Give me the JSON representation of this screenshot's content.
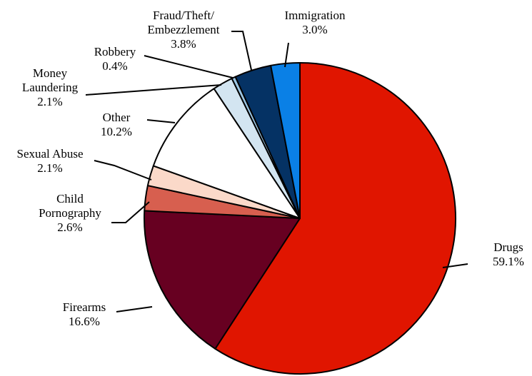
{
  "chart_data": {
    "type": "pie",
    "title": "",
    "start_angle_deg": 0,
    "direction": "clockwise",
    "slices": [
      {
        "label": [
          "Drugs"
        ],
        "value_label": "59.1%",
        "value": 59.1,
        "color": "#e01500"
      },
      {
        "label": [
          "Firearms"
        ],
        "value_label": "16.6%",
        "value": 16.6,
        "color": "#670021"
      },
      {
        "label": [
          "Child",
          "Pornography"
        ],
        "value_label": "2.6%",
        "value": 2.6,
        "color": "#d75f4f"
      },
      {
        "label": [
          "Sexual Abuse"
        ],
        "value_label": "2.1%",
        "value": 2.1,
        "color": "#fbd9c9"
      },
      {
        "label": [
          "Other"
        ],
        "value_label": "10.2%",
        "value": 10.2,
        "color": "#ffffff"
      },
      {
        "label": [
          "Money",
          "Laundering"
        ],
        "value_label": "2.1%",
        "value": 2.1,
        "color": "#d3e5f1"
      },
      {
        "label": [
          "Robbery"
        ],
        "value_label": "0.4%",
        "value": 0.4,
        "color": "#9bc5e3"
      },
      {
        "label": [
          "Fraud/Theft/",
          "Embezzlement"
        ],
        "value_label": "3.8%",
        "value": 3.8,
        "color": "#053264"
      },
      {
        "label": [
          "Immigration"
        ],
        "value_label": "3.0%",
        "value": 3.0,
        "color": "#0a80e6"
      }
    ]
  }
}
